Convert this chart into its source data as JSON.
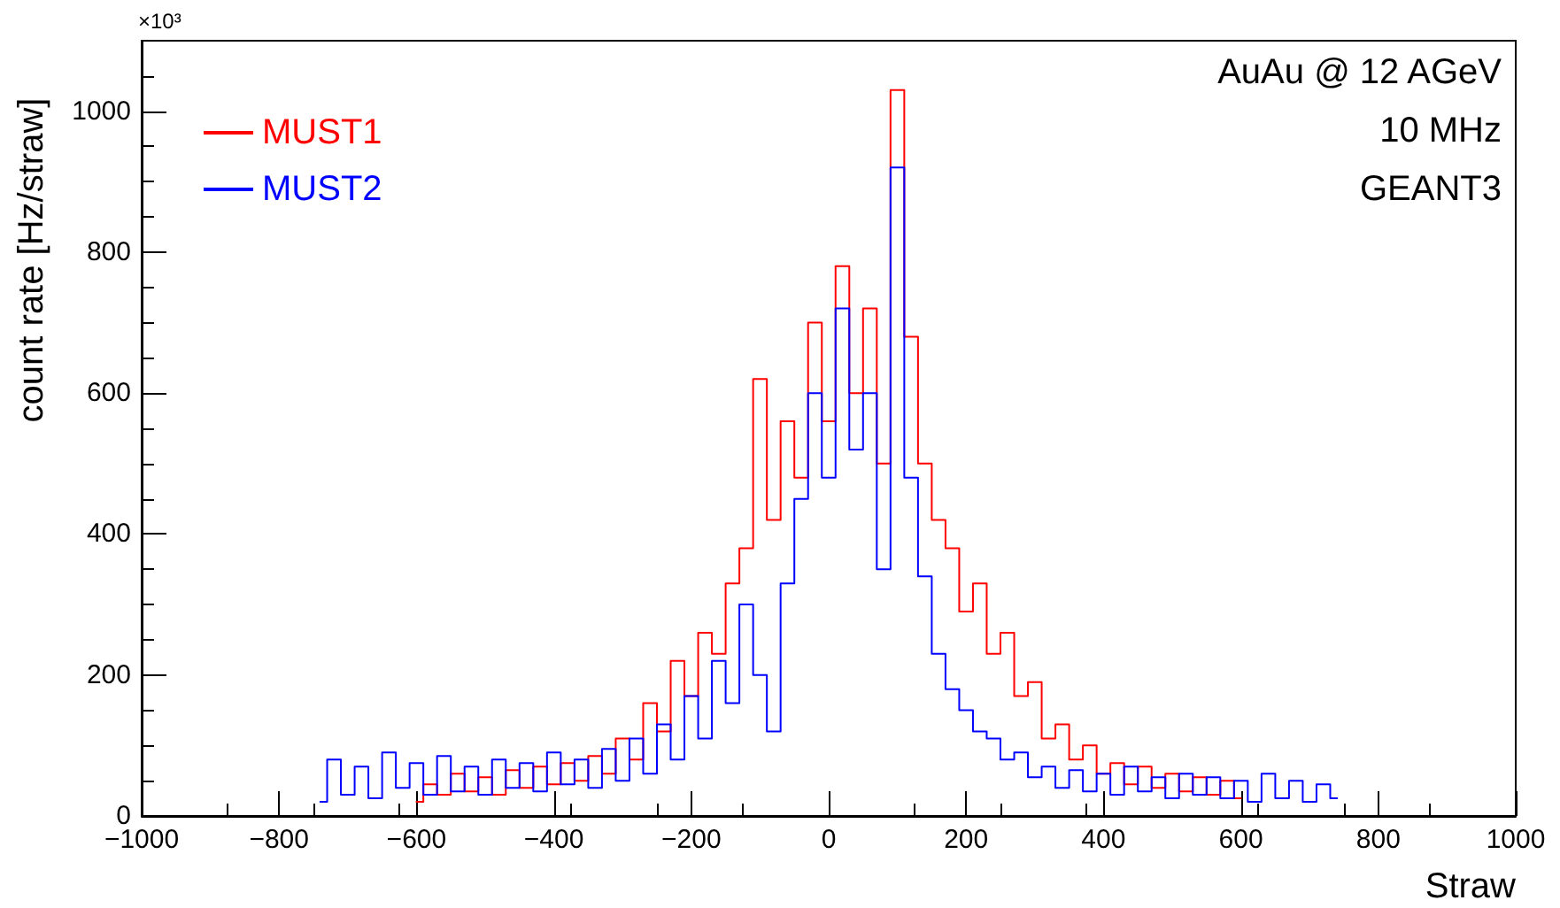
{
  "chart_data": {
    "type": "step",
    "xlabel": "Straw",
    "ylabel": "count rate [Hz/straw]",
    "annotations": [
      "×10³",
      "AuAu @ 12 AGeV",
      "10 MHz",
      "GEANT3"
    ],
    "xlim": [
      -1000,
      1000
    ],
    "xticks": [
      -1000,
      -800,
      -600,
      -400,
      -200,
      0,
      200,
      400,
      600,
      800,
      1000
    ],
    "ylim": [
      0,
      1100
    ],
    "yticks": [
      0,
      200,
      400,
      600,
      800,
      1000
    ],
    "grid": false,
    "legend": "top left",
    "marker": "none",
    "line_style": "solid",
    "series": [
      {
        "name": "MUST1",
        "color": "#ff0000",
        "x": [
          -600,
          -580,
          -560,
          -540,
          -520,
          -500,
          -480,
          -460,
          -440,
          -420,
          -400,
          -380,
          -360,
          -340,
          -320,
          -300,
          -280,
          -260,
          -240,
          -220,
          -200,
          -180,
          -160,
          -140,
          -120,
          -100,
          -80,
          -60,
          -40,
          -20,
          0,
          20,
          40,
          60,
          80,
          100,
          120,
          140,
          160,
          180,
          200,
          220,
          240,
          260,
          280,
          300,
          320,
          340,
          360,
          380,
          400,
          420,
          440,
          460,
          480,
          500,
          520,
          540,
          560,
          580,
          600
        ],
        "values": [
          20,
          45,
          30,
          60,
          35,
          55,
          30,
          65,
          40,
          70,
          45,
          75,
          50,
          85,
          60,
          110,
          80,
          160,
          120,
          220,
          170,
          260,
          230,
          330,
          380,
          620,
          420,
          560,
          480,
          700,
          560,
          780,
          600,
          720,
          500,
          1030,
          680,
          500,
          420,
          380,
          290,
          330,
          230,
          260,
          170,
          190,
          110,
          130,
          80,
          100,
          60,
          75,
          45,
          70,
          40,
          60,
          35,
          55,
          30,
          50,
          25
        ]
      },
      {
        "name": "MUST2",
        "color": "#0000ff",
        "x": [
          -740,
          -720,
          -700,
          -680,
          -660,
          -640,
          -620,
          -600,
          -580,
          -560,
          -540,
          -520,
          -500,
          -480,
          -460,
          -440,
          -420,
          -400,
          -380,
          -360,
          -340,
          -320,
          -300,
          -280,
          -260,
          -240,
          -220,
          -200,
          -180,
          -160,
          -140,
          -120,
          -100,
          -80,
          -60,
          -40,
          -20,
          0,
          20,
          40,
          60,
          80,
          100,
          120,
          140,
          160,
          180,
          200,
          220,
          240,
          260,
          280,
          300,
          320,
          340,
          360,
          380,
          400,
          420,
          440,
          460,
          480,
          500,
          520,
          540,
          560,
          580,
          600,
          620,
          640,
          660,
          680,
          700,
          720,
          740
        ],
        "values": [
          20,
          80,
          30,
          70,
          25,
          90,
          40,
          75,
          30,
          85,
          35,
          70,
          30,
          80,
          40,
          75,
          35,
          90,
          45,
          80,
          40,
          95,
          50,
          110,
          60,
          130,
          80,
          170,
          110,
          220,
          160,
          300,
          200,
          120,
          330,
          450,
          600,
          480,
          720,
          520,
          600,
          350,
          920,
          480,
          340,
          230,
          180,
          150,
          120,
          110,
          80,
          90,
          55,
          70,
          40,
          65,
          35,
          60,
          30,
          70,
          35,
          55,
          25,
          60,
          30,
          55,
          25,
          50,
          20,
          60,
          25,
          50,
          20,
          45,
          25
        ]
      }
    ]
  }
}
